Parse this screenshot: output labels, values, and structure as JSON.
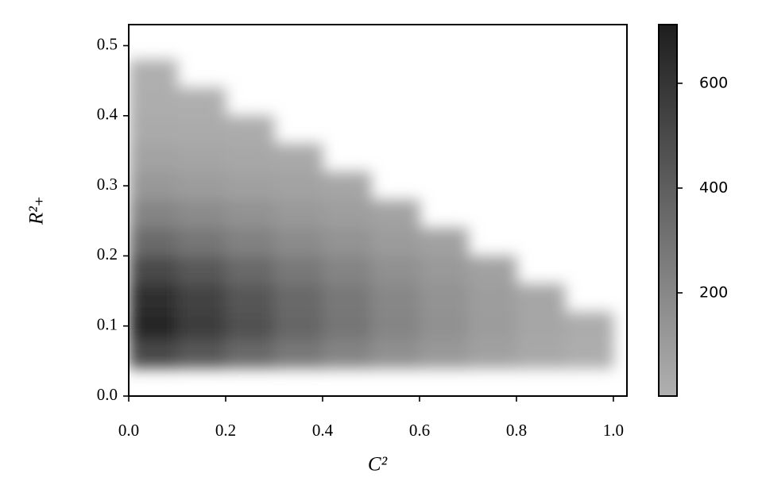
{
  "chart_data": {
    "type": "density",
    "xlabel": "C²",
    "ylabel": "R²₊",
    "xlim": [
      0,
      1.028
    ],
    "ylim": [
      0,
      0.53
    ],
    "xticks": [
      {
        "value": 0,
        "label": "0.0"
      },
      0.2,
      0.4,
      0.6,
      0.8,
      {
        "value": 1,
        "label": "1.0"
      }
    ],
    "yticks": [
      {
        "value": 0,
        "label": "0.0"
      },
      0.1,
      0.2,
      0.3,
      0.4,
      0.5
    ],
    "xbins": [
      0,
      0.1,
      0.2,
      0.3,
      0.4,
      0.5,
      0.6,
      0.7,
      0.8,
      0.9,
      1.0
    ],
    "ybins": [
      0.04,
      0.08,
      0.12,
      0.16,
      0.2,
      0.24,
      0.28,
      0.32,
      0.36,
      0.4,
      0.44,
      0.48
    ],
    "counts": [
      [
        504,
        425,
        347,
        273,
        215,
        158,
        116,
        74,
        40,
        16
      ],
      [
        672,
        567,
        462,
        364,
        287,
        210,
        154,
        98,
        53,
        21
      ],
      [
        638,
        539,
        439,
        346,
        273,
        200,
        146,
        93,
        50,
        0
      ],
      [
        504,
        425,
        347,
        273,
        215,
        158,
        116,
        74,
        0,
        0
      ],
      [
        336,
        284,
        231,
        182,
        144,
        105,
        77,
        0,
        0,
        0
      ],
      [
        215,
        181,
        148,
        116,
        92,
        67,
        0,
        0,
        0,
        0
      ],
      [
        121,
        102,
        83,
        66,
        52,
        0,
        0,
        0,
        0,
        0
      ],
      [
        67,
        57,
        46,
        36,
        0,
        0,
        0,
        0,
        0,
        0
      ],
      [
        34,
        28,
        23,
        0,
        0,
        0,
        0,
        0,
        0,
        0
      ],
      [
        17,
        14,
        0,
        0,
        0,
        0,
        0,
        0,
        0,
        0
      ],
      [
        7,
        0,
        0,
        0,
        0,
        0,
        0,
        0,
        0,
        0
      ]
    ],
    "cmap": [
      "#b0b0b0",
      "#1e1e1e"
    ],
    "clim": [
      3,
      712
    ],
    "cticks": [
      200,
      400,
      600
    ]
  }
}
